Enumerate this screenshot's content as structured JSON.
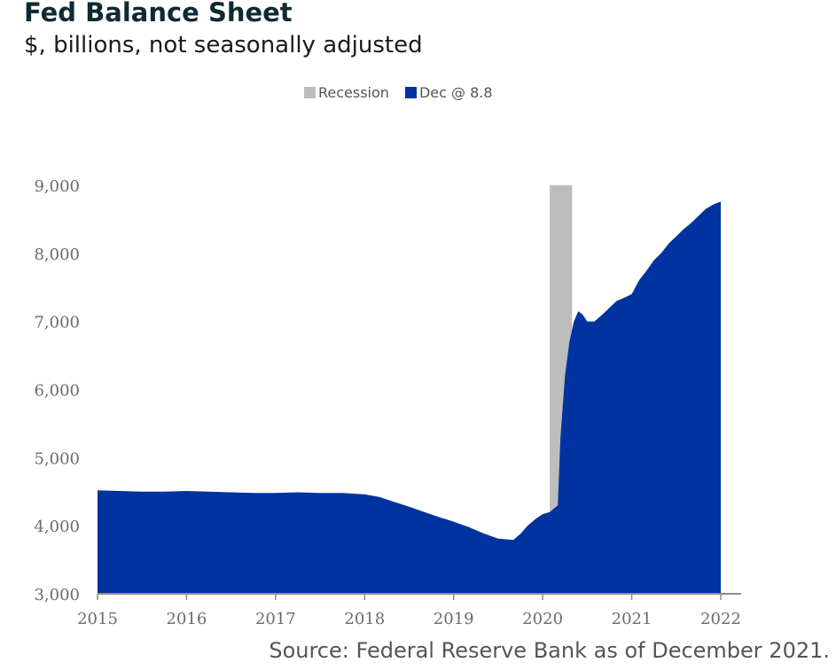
{
  "title": "Fed Balance Sheet",
  "subtitle": "$, billions, not seasonally adjusted",
  "source": "Source: Federal Reserve Bank as of December 2021.",
  "colors": {
    "recession": "#bdbdbd",
    "balance": "#0033a0",
    "axis": "#8c8c8c"
  },
  "chart_data": {
    "type": "area",
    "legend": [
      {
        "label": "Recession",
        "color": "#bdbdbd"
      },
      {
        "label": "Dec @ 8.8",
        "color": "#0033a0"
      }
    ],
    "legend_position": "top-center",
    "ylim": [
      3000,
      9000
    ],
    "yticks": [
      "3,000",
      "4,000",
      "5,000",
      "6,000",
      "7,000",
      "8,000",
      "9,000"
    ],
    "ytick_values": [
      3000,
      4000,
      5000,
      6000,
      7000,
      8000,
      9000
    ],
    "xlim": [
      2015,
      2022
    ],
    "xticks": [
      "2015",
      "2016",
      "2017",
      "2018",
      "2019",
      "2020",
      "2021",
      "2022"
    ],
    "xtick_values": [
      2015,
      2016,
      2017,
      2018,
      2019,
      2020,
      2021,
      2022
    ],
    "grid": false,
    "recession": {
      "start": 2020.08,
      "end": 2020.33
    },
    "series": [
      {
        "x": [
          2015.0,
          2015.25,
          2015.5,
          2015.75,
          2016.0,
          2016.25,
          2016.5,
          2016.75,
          2017.0,
          2017.25,
          2017.5,
          2017.75,
          2018.0,
          2018.17,
          2018.33,
          2018.5,
          2018.67,
          2018.83,
          2019.0,
          2019.17,
          2019.33,
          2019.5,
          2019.67,
          2019.75,
          2019.83,
          2019.92,
          2020.0,
          2020.08,
          2020.17,
          2020.2,
          2020.25,
          2020.3,
          2020.35,
          2020.4,
          2020.45,
          2020.5,
          2020.58,
          2020.67,
          2020.75,
          2020.83,
          2020.92,
          2021.0,
          2021.08,
          2021.17,
          2021.25,
          2021.33,
          2021.42,
          2021.5,
          2021.58,
          2021.67,
          2021.75,
          2021.83,
          2021.92,
          2022.0
        ],
        "values": [
          4520,
          4510,
          4500,
          4500,
          4510,
          4500,
          4490,
          4480,
          4480,
          4490,
          4480,
          4480,
          4460,
          4420,
          4350,
          4280,
          4200,
          4130,
          4060,
          3980,
          3890,
          3810,
          3790,
          3880,
          4000,
          4100,
          4170,
          4200,
          4300,
          5300,
          6200,
          6700,
          7000,
          7150,
          7100,
          7000,
          7000,
          7100,
          7200,
          7300,
          7350,
          7400,
          7600,
          7750,
          7900,
          8000,
          8150,
          8250,
          8350,
          8450,
          8550,
          8650,
          8720,
          8760
        ]
      }
    ]
  }
}
